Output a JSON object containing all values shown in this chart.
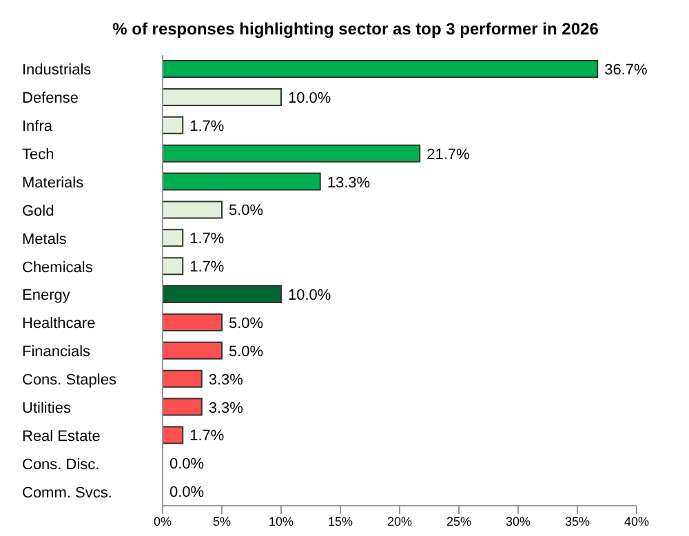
{
  "chart_data": {
    "type": "bar",
    "orientation": "horizontal",
    "title": "% of responses highlighting sector as top 3 performer in 2026",
    "categories": [
      "Industrials",
      "Defense",
      "Infra",
      "Tech",
      "Materials",
      "Gold",
      "Metals",
      "Chemicals",
      "Energy",
      "Healthcare",
      "Financials",
      "Cons. Staples",
      "Utilities",
      "Real Estate",
      "Cons. Disc.",
      "Comm. Svcs."
    ],
    "values": [
      36.7,
      10.0,
      1.7,
      21.7,
      13.3,
      5.0,
      1.7,
      1.7,
      10.0,
      5.0,
      5.0,
      3.3,
      3.3,
      1.7,
      0.0,
      0.0
    ],
    "colors": [
      "#00b050",
      "#e2efda",
      "#e2efda",
      "#00b050",
      "#00b050",
      "#e2efda",
      "#e2efda",
      "#e2efda",
      "#006633",
      "#ff5050",
      "#ff5050",
      "#ff5050",
      "#ff5050",
      "#ff5050",
      "#ff5050",
      "#ff5050"
    ],
    "value_labels": [
      "36.7%",
      "10.0%",
      "1.7%",
      "21.7%",
      "13.3%",
      "5.0%",
      "1.7%",
      "1.7%",
      "10.0%",
      "5.0%",
      "5.0%",
      "3.3%",
      "3.3%",
      "1.7%",
      "0.0%",
      "0.0%"
    ],
    "xlim": [
      0,
      40
    ],
    "xticks": [
      {
        "value": 0,
        "label": "0%"
      },
      {
        "value": 5,
        "label": "5%"
      },
      {
        "value": 10,
        "label": "10%"
      },
      {
        "value": 15,
        "label": "15%"
      },
      {
        "value": 20,
        "label": "20%"
      },
      {
        "value": 25,
        "label": "25%"
      },
      {
        "value": 30,
        "label": "30%"
      },
      {
        "value": 35,
        "label": "35%"
      },
      {
        "value": 40,
        "label": "40%"
      }
    ],
    "grid": false,
    "legend": false
  }
}
